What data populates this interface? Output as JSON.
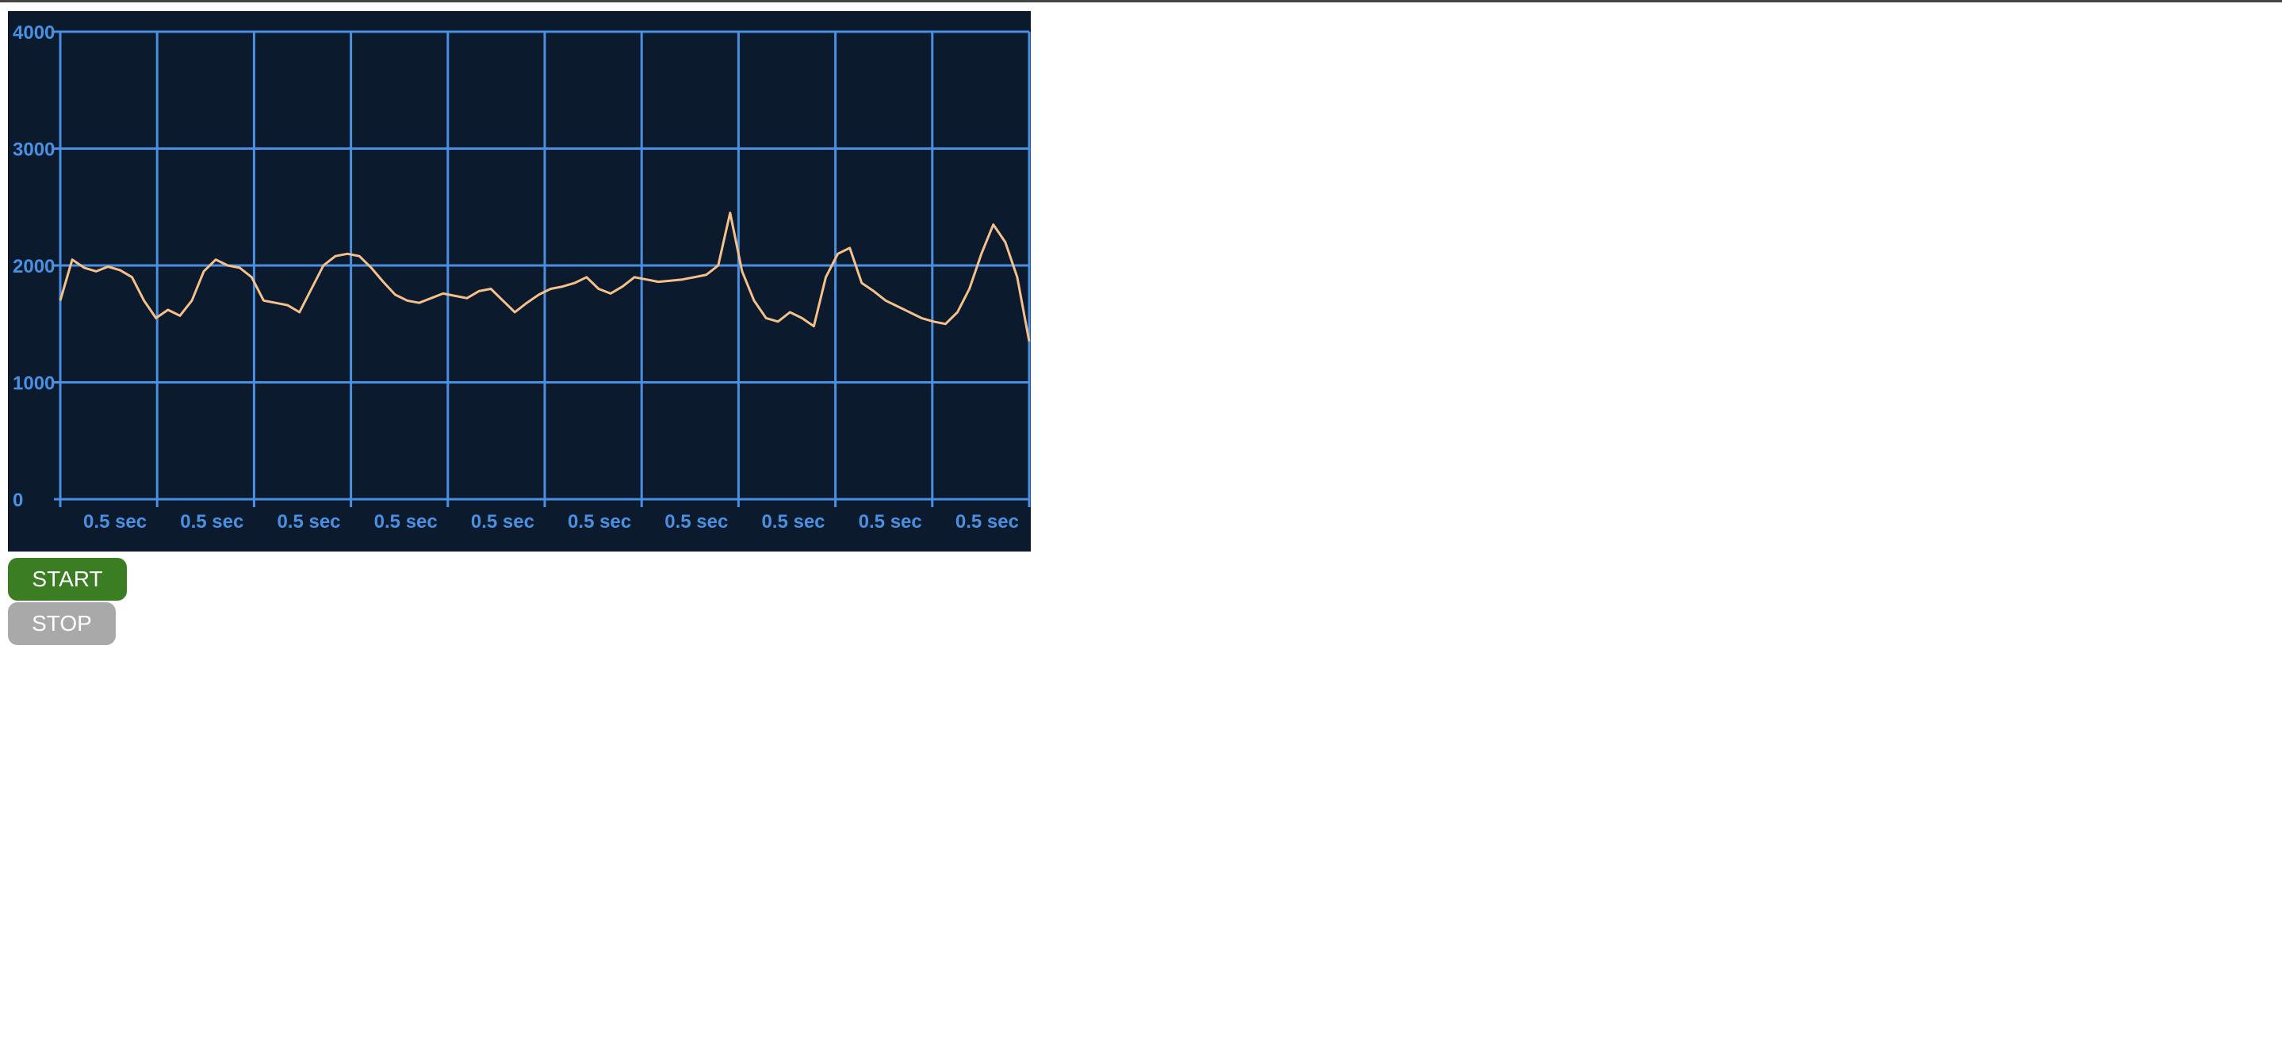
{
  "controls": {
    "start_label": "START",
    "stop_label": "STOP",
    "start_color": "#3a7d22",
    "stop_color": "#a9a9a9"
  },
  "colors": {
    "background": "#0b1a2d",
    "grid": "#4a90e2",
    "line": "#f5c08a"
  },
  "chart_data": {
    "type": "line",
    "title": "",
    "xlabel": "",
    "ylabel": "",
    "ylim": [
      0,
      4000
    ],
    "y_ticks": [
      "0",
      "1000",
      "2000",
      "3000",
      "4000"
    ],
    "x_tick_labels": [
      "0.5 sec",
      "0.5 sec",
      "0.5 sec",
      "0.5 sec",
      "0.5 sec",
      "0.5 sec",
      "0.5 sec",
      "0.5 sec",
      "0.5 sec",
      "0.5 sec"
    ],
    "x_divisions": 10,
    "grid": true,
    "legend": "none",
    "series": [
      {
        "values": [
          1700,
          2050,
          1980,
          1950,
          1990,
          1960,
          1900,
          1700,
          1550,
          1620,
          1570,
          1700,
          1950,
          2050,
          2000,
          1980,
          1900,
          1700,
          1680,
          1660,
          1600,
          1800,
          2000,
          2080,
          2100,
          2080,
          1980,
          1860,
          1750,
          1700,
          1680,
          1720,
          1760,
          1740,
          1720,
          1780,
          1800,
          1700,
          1600,
          1680,
          1750,
          1800,
          1820,
          1850,
          1900,
          1800,
          1760,
          1820,
          1900,
          1880,
          1860,
          1870,
          1880,
          1900,
          1920,
          2000,
          2450,
          1950,
          1700,
          1550,
          1520,
          1600,
          1550,
          1480,
          1900,
          2100,
          2150,
          1850,
          1780,
          1700,
          1650,
          1600,
          1550,
          1520,
          1500,
          1600,
          1800,
          2100,
          2350,
          2200,
          1900,
          1350
        ]
      }
    ]
  }
}
